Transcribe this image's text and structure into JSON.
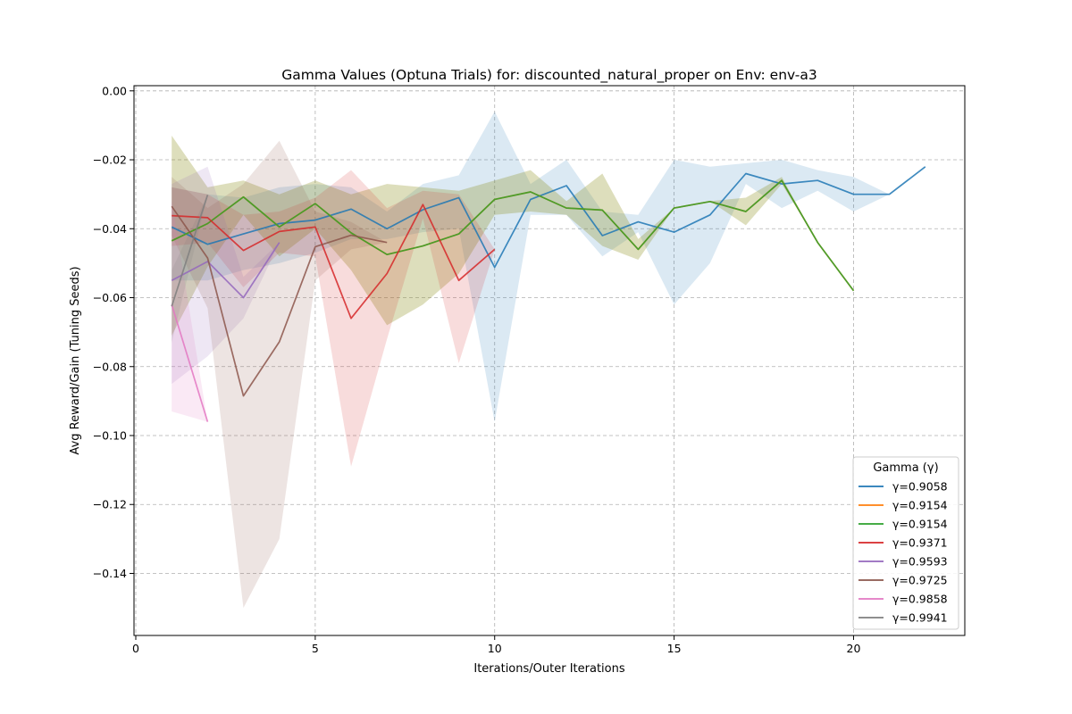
{
  "chart_data": {
    "type": "line",
    "title": "Gamma Values (Optuna Trials) for: discounted_natural_proper on Env: env-a3",
    "xlabel": "Iterations/Outer Iterations",
    "ylabel": "Avg Reward/Gain (Tuning Seeds)",
    "xlim": [
      -0.05,
      23.1
    ],
    "ylim": [
      -0.158,
      0.0015
    ],
    "xticks": [
      "0",
      "5",
      "10",
      "15",
      "20"
    ],
    "xtick_values": [
      0,
      5,
      10,
      15,
      20
    ],
    "yticks": [
      "0.00",
      "−0.02",
      "−0.04",
      "−0.06",
      "−0.08",
      "−0.10",
      "−0.12",
      "−0.14"
    ],
    "ytick_values": [
      0.0,
      -0.02,
      -0.04,
      -0.06,
      -0.08,
      -0.1,
      -0.12,
      -0.14
    ],
    "grid": true,
    "legend_title": "Gamma (γ)",
    "legend_position": "lower right",
    "series": [
      {
        "name": "γ=0.9058",
        "color": "#1f77b4",
        "x": [
          1,
          2,
          3,
          4,
          5,
          6,
          7,
          8,
          9,
          10,
          11,
          12,
          13,
          14,
          15,
          16,
          17,
          18,
          19,
          20,
          21,
          22
        ],
        "values": [
          -0.0395,
          -0.0445,
          -0.0415,
          -0.0385,
          -0.0375,
          -0.0343,
          -0.04,
          -0.0345,
          -0.031,
          -0.0512,
          -0.0315,
          -0.0275,
          -0.042,
          -0.038,
          -0.041,
          -0.036,
          -0.024,
          -0.027,
          -0.026,
          -0.03,
          -0.03,
          -0.022
        ],
        "upper": [
          -0.028,
          -0.03,
          -0.031,
          -0.028,
          -0.027,
          -0.028,
          -0.035,
          -0.027,
          -0.0245,
          -0.006,
          -0.027,
          -0.02,
          -0.035,
          -0.036,
          -0.02,
          -0.022,
          -0.021,
          -0.02,
          -0.023,
          -0.025,
          -0.03,
          -0.022
        ],
        "lower": [
          -0.055,
          -0.055,
          -0.052,
          -0.05,
          -0.047,
          -0.043,
          -0.043,
          -0.041,
          -0.04,
          -0.096,
          -0.036,
          -0.036,
          -0.048,
          -0.041,
          -0.062,
          -0.05,
          -0.027,
          -0.034,
          -0.029,
          -0.035,
          -0.03,
          -0.022
        ]
      },
      {
        "name": "γ=0.9154",
        "color": "#ff7f0e",
        "x": [
          1,
          2,
          3,
          4,
          5,
          6,
          7,
          8,
          9,
          10,
          11,
          12,
          13,
          14,
          15,
          16,
          17,
          18,
          19,
          20
        ],
        "values": [
          -0.0435,
          -0.0385,
          -0.0308,
          -0.0395,
          -0.0327,
          -0.0412,
          -0.0475,
          -0.045,
          -0.0415,
          -0.0315,
          -0.0293,
          -0.034,
          -0.0346,
          -0.046,
          -0.034,
          -0.0321,
          -0.035,
          -0.026,
          -0.044,
          -0.058
        ],
        "upper": [
          -0.013,
          -0.028,
          -0.026,
          -0.03,
          -0.026,
          -0.03,
          -0.027,
          -0.028,
          -0.029,
          -0.026,
          -0.023,
          -0.032,
          -0.024,
          -0.043,
          -0.034,
          -0.032,
          -0.031,
          -0.025,
          -0.044,
          -0.058
        ],
        "lower": [
          -0.071,
          -0.051,
          -0.036,
          -0.048,
          -0.04,
          -0.052,
          -0.068,
          -0.062,
          -0.053,
          -0.036,
          -0.035,
          -0.036,
          -0.045,
          -0.049,
          -0.034,
          -0.032,
          -0.039,
          -0.027,
          -0.044,
          -0.058
        ]
      },
      {
        "name": "γ=0.9154",
        "color": "#2ca02c",
        "x": [
          1,
          2,
          3,
          4,
          5,
          6,
          7,
          8,
          9,
          10,
          11,
          12,
          13,
          14,
          15,
          16,
          17,
          18,
          19,
          20
        ],
        "values": [
          -0.0435,
          -0.0385,
          -0.0308,
          -0.0395,
          -0.0327,
          -0.0412,
          -0.0475,
          -0.045,
          -0.0415,
          -0.0315,
          -0.0293,
          -0.034,
          -0.0346,
          -0.046,
          -0.034,
          -0.0321,
          -0.035,
          -0.026,
          -0.044,
          -0.058
        ],
        "upper": [
          -0.013,
          -0.028,
          -0.026,
          -0.03,
          -0.026,
          -0.03,
          -0.027,
          -0.028,
          -0.029,
          -0.026,
          -0.023,
          -0.032,
          -0.024,
          -0.043,
          -0.034,
          -0.032,
          -0.031,
          -0.025,
          -0.044,
          -0.058
        ],
        "lower": [
          -0.071,
          -0.051,
          -0.036,
          -0.048,
          -0.04,
          -0.052,
          -0.068,
          -0.062,
          -0.053,
          -0.036,
          -0.035,
          -0.036,
          -0.045,
          -0.049,
          -0.034,
          -0.032,
          -0.039,
          -0.027,
          -0.044,
          -0.058
        ]
      },
      {
        "name": "γ=0.9371",
        "color": "#d62728",
        "x": [
          1,
          2,
          3,
          4,
          5,
          6,
          7,
          8,
          9,
          10
        ],
        "values": [
          -0.0362,
          -0.0368,
          -0.0463,
          -0.0408,
          -0.0395,
          -0.066,
          -0.053,
          -0.033,
          -0.055,
          -0.046
        ],
        "upper": [
          -0.028,
          -0.03,
          -0.036,
          -0.035,
          -0.031,
          -0.023,
          -0.034,
          -0.029,
          -0.03,
          -0.046
        ],
        "lower": [
          -0.045,
          -0.044,
          -0.057,
          -0.047,
          -0.048,
          -0.109,
          -0.072,
          -0.037,
          -0.079,
          -0.046
        ]
      },
      {
        "name": "γ=0.9593",
        "color": "#9467bd",
        "x": [
          1,
          2,
          3,
          4
        ],
        "values": [
          -0.055,
          -0.0495,
          -0.06,
          -0.044
        ],
        "upper": [
          -0.027,
          -0.022,
          -0.054,
          -0.044
        ],
        "lower": [
          -0.085,
          -0.077,
          -0.066,
          -0.044
        ]
      },
      {
        "name": "γ=0.9725",
        "color": "#8c564b",
        "x": [
          1,
          2,
          3,
          4,
          5,
          6,
          7
        ],
        "values": [
          -0.0335,
          -0.0485,
          -0.0885,
          -0.0728,
          -0.0452,
          -0.0419,
          -0.044
        ],
        "upper": [
          -0.025,
          -0.034,
          -0.027,
          -0.0145,
          -0.035,
          -0.038,
          -0.044
        ],
        "lower": [
          -0.042,
          -0.063,
          -0.15,
          -0.13,
          -0.055,
          -0.046,
          -0.044
        ]
      },
      {
        "name": "γ=0.9858",
        "color": "#e377c2",
        "x": [
          1,
          2
        ],
        "values": [
          -0.062,
          -0.096
        ],
        "upper": [
          -0.032,
          -0.096
        ],
        "lower": [
          -0.093,
          -0.096
        ]
      },
      {
        "name": "γ=0.9941",
        "color": "#7f7f7f",
        "x": [
          1,
          2
        ],
        "values": [
          -0.0625,
          -0.0302
        ],
        "upper": [
          -0.052,
          -0.0302
        ],
        "lower": [
          -0.073,
          -0.0302
        ]
      }
    ]
  }
}
